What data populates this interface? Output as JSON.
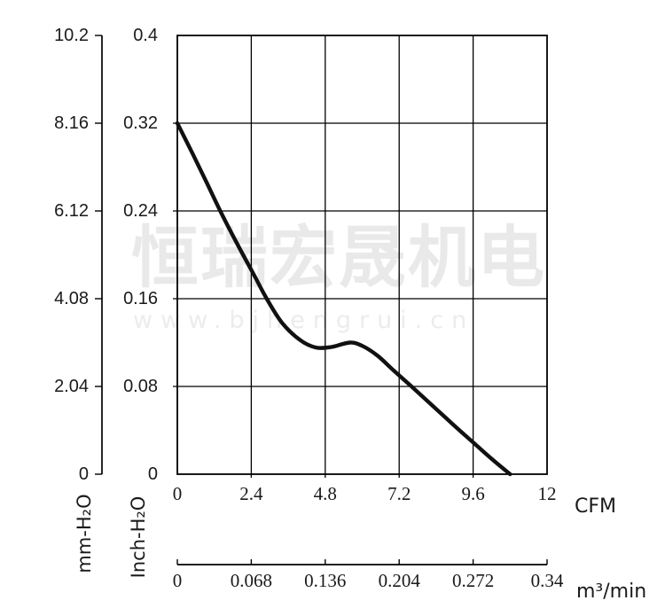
{
  "watermark": {
    "brand_cn": "恒瑞宏晟机电",
    "brand_url": "www.bjhengrui.cn"
  },
  "chart_data": {
    "type": "line",
    "title": "",
    "grid": true,
    "x_axes": [
      {
        "name": "cfm",
        "label": "CFM",
        "range": [
          0,
          12
        ],
        "ticks": [
          "0",
          "2.4",
          "4.8",
          "7.2",
          "9.6",
          "12"
        ]
      },
      {
        "name": "m3min",
        "label": "m³/min",
        "range": [
          0,
          0.34
        ],
        "ticks": [
          "0",
          "0.068",
          "0.136",
          "0.204",
          "0.272",
          "0.34"
        ]
      }
    ],
    "y_axes": [
      {
        "name": "mm_h2o",
        "label": "mm-H₂O",
        "range": [
          0,
          10.2
        ],
        "ticks": [
          "10.2",
          "8.16",
          "6.12",
          "4.08",
          "2.04",
          "0"
        ]
      },
      {
        "name": "inch_h2o",
        "label": "Inch-H₂O",
        "range": [
          0,
          0.4
        ],
        "ticks": [
          "0.4",
          "0.32",
          "0.24",
          "0.16",
          "0.08",
          "0"
        ]
      }
    ],
    "series": [
      {
        "name": "pressure-airflow-curve",
        "x_unit": "CFM",
        "y_unit": "Inch-H2O",
        "points": [
          [
            0,
            0.32
          ],
          [
            0.5,
            0.292
          ],
          [
            1.0,
            0.263
          ],
          [
            1.5,
            0.234
          ],
          [
            2.0,
            0.207
          ],
          [
            2.5,
            0.181
          ],
          [
            2.9,
            0.16
          ],
          [
            3.4,
            0.138
          ],
          [
            4.0,
            0.122
          ],
          [
            4.5,
            0.1155
          ],
          [
            5.0,
            0.116
          ],
          [
            5.6,
            0.12
          ],
          [
            6.0,
            0.117
          ],
          [
            6.5,
            0.108
          ],
          [
            7.0,
            0.095
          ],
          [
            7.6,
            0.08
          ],
          [
            8.3,
            0.062
          ],
          [
            9.0,
            0.044
          ],
          [
            9.6,
            0.029
          ],
          [
            10.2,
            0.014
          ],
          [
            10.8,
            0.0
          ]
        ]
      }
    ],
    "colors": {
      "curve": "#111111",
      "grid": "#000000",
      "watermark": "#e9e9e9"
    }
  }
}
